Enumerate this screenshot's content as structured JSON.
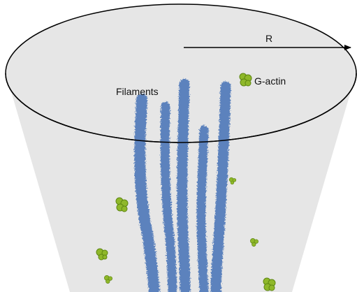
{
  "labels": {
    "radius": "R",
    "actin": "G-actin",
    "filaments": "Filaments"
  },
  "colors": {
    "cone_fill": "#e6e6e6",
    "outline": "#000000",
    "filament": "#5b82bd",
    "filament_dark": "#3e5f93",
    "actin": "#8fb82a",
    "actin_dark": "#5e8612"
  },
  "counts": {
    "filaments": 5,
    "g_actin_monomers": 7
  }
}
